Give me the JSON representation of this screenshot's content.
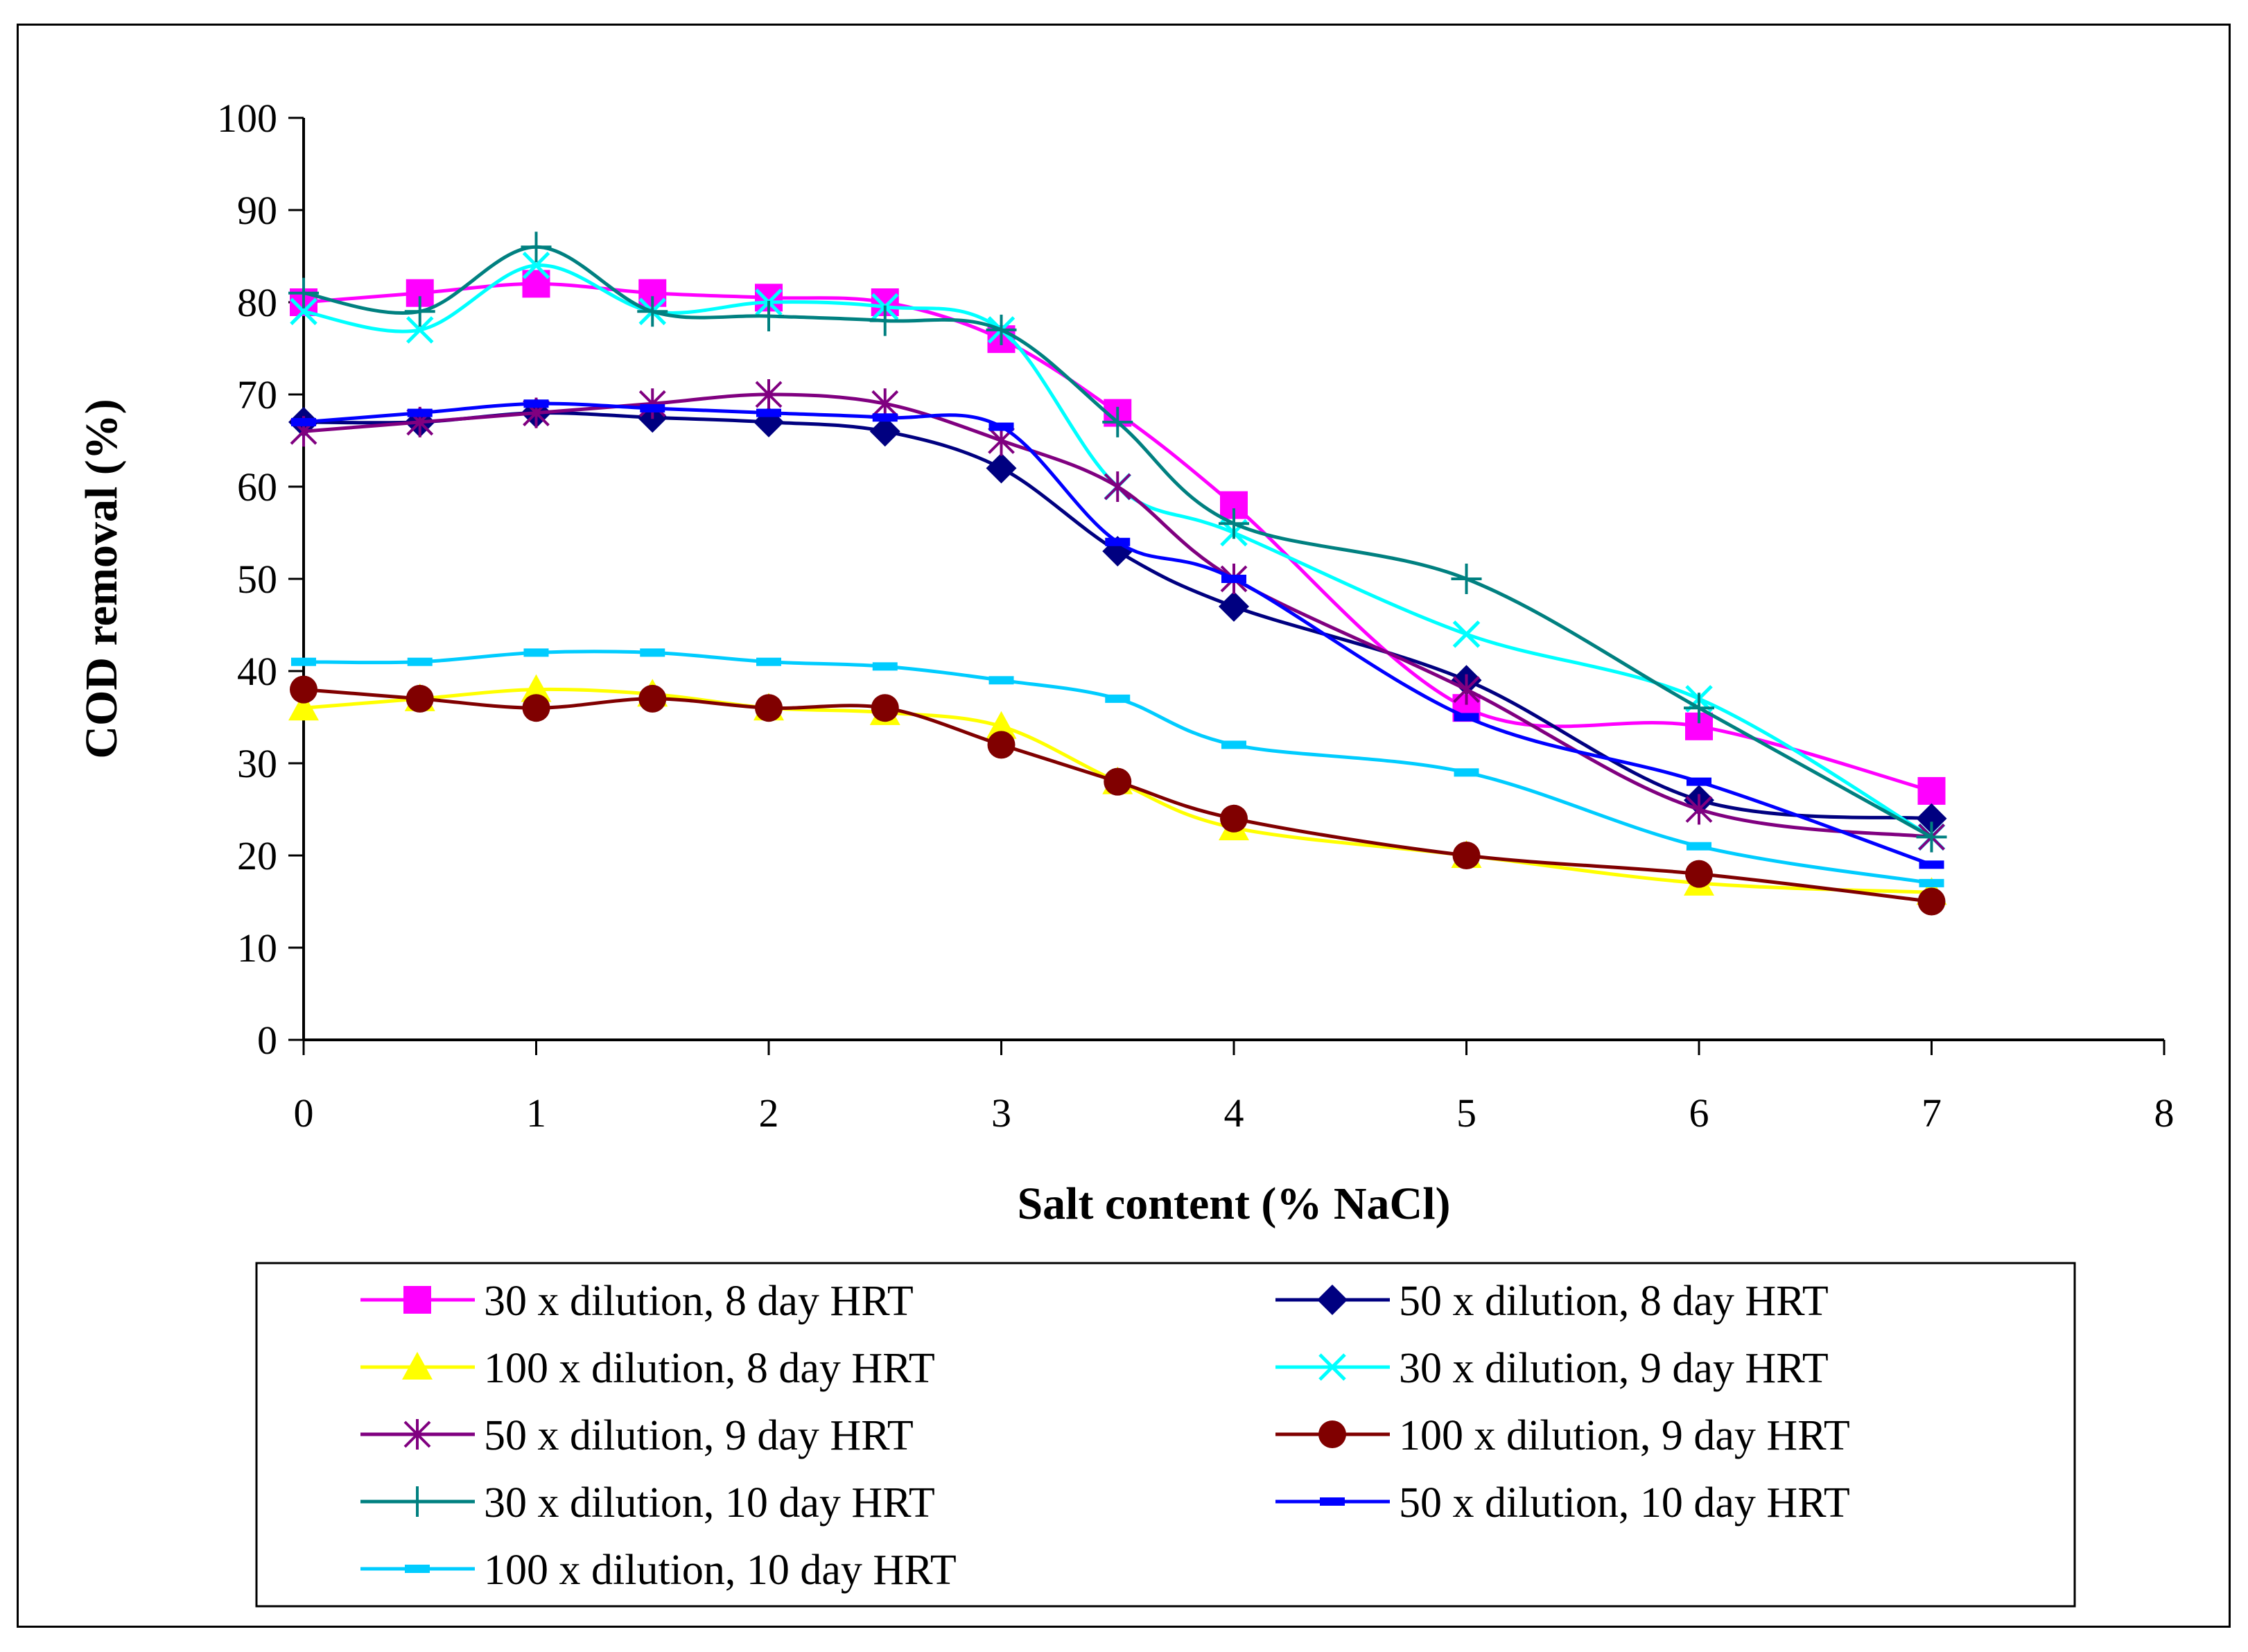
{
  "chart_data": {
    "type": "line",
    "xlabel": "Salt content (% NaCl)",
    "ylabel": "COD removal (%)",
    "xlim": [
      0,
      8
    ],
    "ylim": [
      0,
      100
    ],
    "xticks": [
      "0",
      "1",
      "2",
      "3",
      "4",
      "5",
      "6",
      "7",
      "8"
    ],
    "yticks": [
      "0",
      "10",
      "20",
      "30",
      "40",
      "50",
      "60",
      "70",
      "80",
      "90",
      "100"
    ],
    "x": [
      0,
      0.5,
      1,
      1.5,
      2,
      2.5,
      3,
      3.5,
      4,
      5,
      6,
      7
    ],
    "legend_position": "bottom",
    "series": [
      {
        "name": "30 x dilution, 8 day HRT",
        "color": "#FF00FF",
        "marker": "square",
        "values": [
          80,
          81,
          82,
          81,
          80.5,
          80,
          76,
          68,
          58,
          36,
          34,
          27
        ]
      },
      {
        "name": "50 x dilution, 8 day HRT",
        "color": "#000080",
        "marker": "diamond",
        "values": [
          67,
          67,
          68,
          67.5,
          67,
          66,
          62,
          53,
          47,
          39,
          26,
          24
        ]
      },
      {
        "name": "100 x dilution, 8 day HRT",
        "color": "#FFFF00",
        "marker": "triangle",
        "values": [
          36,
          37,
          38,
          37.5,
          36,
          35.5,
          34,
          28,
          23,
          20,
          17,
          16
        ]
      },
      {
        "name": "30 x dilution, 9 day HRT",
        "color": "#00FFFF",
        "marker": "x",
        "values": [
          79,
          77,
          84,
          79,
          80,
          79.5,
          77,
          60,
          55,
          44,
          37,
          22
        ]
      },
      {
        "name": "50 x dilution, 9 day HRT",
        "color": "#800080",
        "marker": "asterisk",
        "values": [
          66,
          67,
          68,
          69,
          70,
          69,
          65,
          60,
          50,
          38,
          25,
          22
        ]
      },
      {
        "name": "100 x dilution, 9 day HRT",
        "color": "#800000",
        "marker": "circle",
        "values": [
          38,
          37,
          36,
          37,
          36,
          36,
          32,
          28,
          24,
          20,
          18,
          15
        ]
      },
      {
        "name": "30 x dilution, 10 day HRT",
        "color": "#008080",
        "marker": "plus",
        "values": [
          81,
          79,
          86,
          79,
          78.5,
          78,
          77,
          67,
          56,
          50,
          36,
          22
        ]
      },
      {
        "name": "50 x dilution, 10 day HRT",
        "color": "#0000FF",
        "marker": "dash",
        "values": [
          67,
          68,
          69,
          68.5,
          68,
          67.5,
          66.5,
          54,
          50,
          35,
          28,
          19
        ]
      },
      {
        "name": "100 x dilution, 10 day HRT",
        "color": "#00CCFF",
        "marker": "dash",
        "values": [
          41,
          41,
          42,
          42,
          41,
          40.5,
          39,
          37,
          32,
          29,
          21,
          17
        ]
      }
    ]
  }
}
